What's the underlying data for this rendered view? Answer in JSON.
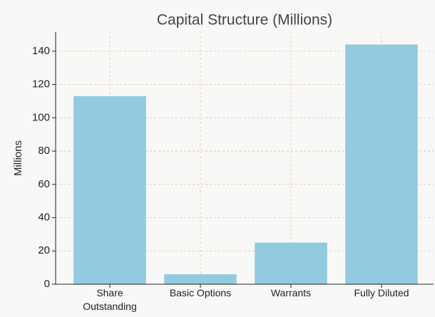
{
  "chart_data": {
    "type": "bar",
    "title": "Capital Structure (Millions)",
    "y_label": "Millions",
    "categories": [
      "Share Outstanding",
      "Basic Options",
      "Warrants",
      "Fully Diluted"
    ],
    "values": [
      113,
      6,
      25,
      144
    ],
    "color": "#92cbdf",
    "ylim": [
      0,
      151.5
    ],
    "yticks": [
      0,
      20,
      40,
      60,
      80,
      100,
      120,
      140
    ],
    "grid": true
  }
}
